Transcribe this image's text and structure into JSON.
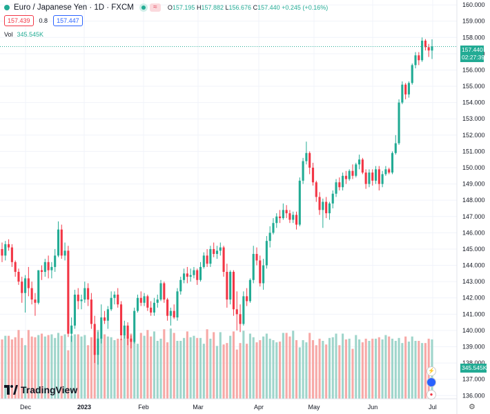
{
  "header": {
    "title": "Euro / Japanese Yen · 1D · FXCM",
    "approx_label": "≈",
    "open_label": "O",
    "open": "157.195",
    "high_label": "H",
    "high": "157.882",
    "low_label": "L",
    "low": "156.676",
    "close_label": "C",
    "close": "157.440",
    "change": "+0.245 (+0.16%)"
  },
  "trade": {
    "sell": "157.439",
    "spread": "0.8",
    "buy": "157.447"
  },
  "volume": {
    "label": "Vol",
    "value": "345.545K"
  },
  "last_price_tag": {
    "price": "157.440",
    "countdown": "02:27:39"
  },
  "volume_tag": "345.545K",
  "logo": "TradingView",
  "colors": {
    "up": "#22ab94",
    "down": "#f23645",
    "vol_up": "#9fd5cb",
    "vol_down": "#f7a9a7"
  },
  "chart_data": {
    "type": "candlestick",
    "symbol": "Euro / Japanese Yen",
    "interval": "1D",
    "x_ticks": [
      "Dec",
      "2023",
      "Feb",
      "Mar",
      "Apr",
      "May",
      "Jun",
      "Jul"
    ],
    "y_ticks": [
      136,
      137,
      138,
      139,
      140,
      141,
      142,
      143,
      144,
      145,
      146,
      147,
      148,
      149,
      150,
      151,
      152,
      153,
      154,
      155,
      156,
      157,
      158,
      159,
      160
    ],
    "y_tick_labels": [
      "136.000",
      "137.000",
      "138.000",
      "139.000",
      "140.000",
      "141.000",
      "142.000",
      "143.000",
      "144.000",
      "145.000",
      "146.000",
      "147.000",
      "148.000",
      "149.000",
      "150.000",
      "151.000",
      "152.000",
      "153.000",
      "154.000",
      "155.000",
      "156.000",
      "157.000",
      "158.000",
      "159.000",
      "160.000"
    ],
    "ylim": [
      135.8,
      160.3
    ],
    "last_close": 157.44,
    "candles": [
      [
        145.0,
        145.4,
        144.2,
        144.6
      ],
      [
        144.6,
        145.5,
        144.3,
        145.3
      ],
      [
        145.3,
        145.6,
        144.9,
        145.1
      ],
      [
        145.1,
        145.3,
        143.9,
        144.2
      ],
      [
        144.2,
        144.3,
        143.3,
        143.6
      ],
      [
        143.6,
        143.8,
        142.8,
        143.0
      ],
      [
        143.0,
        143.3,
        141.7,
        142.3
      ],
      [
        142.3,
        143.4,
        141.1,
        143.2
      ],
      [
        143.2,
        143.9,
        142.1,
        142.6
      ],
      [
        142.6,
        143.0,
        141.6,
        141.9
      ],
      [
        141.9,
        142.3,
        140.9,
        141.7
      ],
      [
        141.7,
        143.7,
        141.6,
        143.7
      ],
      [
        143.7,
        144.0,
        143.1,
        143.6
      ],
      [
        143.6,
        144.4,
        143.3,
        144.2
      ],
      [
        144.2,
        144.6,
        143.2,
        143.7
      ],
      [
        143.7,
        144.2,
        143.2,
        143.9
      ],
      [
        143.9,
        145.0,
        143.6,
        144.6
      ],
      [
        144.6,
        146.7,
        144.5,
        146.2
      ],
      [
        146.2,
        146.5,
        144.4,
        144.6
      ],
      [
        144.6,
        145.4,
        144.3,
        144.9
      ],
      [
        144.9,
        145.2,
        139.6,
        139.8
      ],
      [
        139.8,
        140.8,
        139.3,
        140.3
      ],
      [
        140.3,
        142.5,
        140.1,
        142.2
      ],
      [
        142.2,
        142.6,
        141.3,
        141.8
      ],
      [
        141.8,
        142.2,
        141.3,
        141.9
      ],
      [
        141.9,
        143.0,
        141.7,
        142.6
      ],
      [
        142.6,
        142.9,
        141.5,
        141.9
      ],
      [
        141.9,
        142.3,
        140.1,
        140.4
      ],
      [
        140.4,
        140.9,
        138.0,
        138.5
      ],
      [
        138.5,
        139.9,
        137.9,
        139.5
      ],
      [
        139.5,
        141.6,
        139.2,
        140.8
      ],
      [
        140.8,
        141.2,
        140.4,
        140.6
      ],
      [
        140.6,
        141.5,
        140.1,
        141.3
      ],
      [
        141.3,
        142.4,
        141.2,
        142.0
      ],
      [
        142.0,
        142.4,
        141.6,
        142.2
      ],
      [
        142.2,
        142.6,
        141.4,
        141.6
      ],
      [
        141.6,
        141.8,
        139.4,
        139.7
      ],
      [
        139.7,
        140.6,
        139.5,
        140.3
      ],
      [
        140.3,
        140.5,
        139.1,
        139.5
      ],
      [
        139.5,
        139.7,
        138.9,
        139.3
      ],
      [
        139.3,
        141.4,
        139.2,
        141.2
      ],
      [
        141.2,
        142.2,
        141.1,
        142.0
      ],
      [
        142.0,
        142.4,
        141.5,
        141.7
      ],
      [
        141.7,
        142.3,
        141.5,
        142.1
      ],
      [
        142.1,
        142.2,
        141.2,
        141.4
      ],
      [
        141.4,
        141.8,
        140.9,
        141.1
      ],
      [
        141.1,
        142.0,
        140.9,
        141.7
      ],
      [
        141.7,
        142.2,
        141.4,
        141.9
      ],
      [
        141.9,
        143.1,
        141.8,
        142.9
      ],
      [
        142.9,
        143.0,
        141.7,
        141.9
      ],
      [
        141.9,
        142.0,
        140.6,
        140.9
      ],
      [
        140.9,
        141.4,
        140.3,
        141.2
      ],
      [
        141.2,
        141.6,
        140.7,
        140.8
      ],
      [
        140.8,
        142.6,
        140.6,
        142.4
      ],
      [
        142.4,
        143.3,
        142.2,
        143.1
      ],
      [
        143.1,
        143.8,
        142.9,
        143.5
      ],
      [
        143.5,
        143.9,
        142.9,
        143.3
      ],
      [
        143.3,
        143.8,
        143.0,
        143.4
      ],
      [
        143.4,
        143.9,
        143.2,
        143.7
      ],
      [
        143.7,
        143.8,
        142.8,
        143.1
      ],
      [
        143.1,
        144.2,
        143.0,
        143.9
      ],
      [
        143.9,
        144.8,
        143.8,
        144.6
      ],
      [
        144.6,
        145.0,
        143.9,
        144.1
      ],
      [
        144.1,
        145.2,
        143.9,
        145.0
      ],
      [
        145.0,
        145.4,
        144.5,
        144.7
      ],
      [
        144.7,
        145.2,
        144.4,
        144.9
      ],
      [
        144.9,
        145.4,
        144.6,
        145.1
      ],
      [
        145.1,
        145.2,
        143.3,
        143.6
      ],
      [
        143.6,
        144.1,
        141.4,
        141.9
      ],
      [
        141.9,
        143.7,
        141.6,
        143.6
      ],
      [
        143.6,
        143.7,
        140.9,
        141.3
      ],
      [
        141.3,
        142.4,
        140.0,
        141.0
      ],
      [
        141.0,
        141.6,
        139.9,
        140.4
      ],
      [
        140.4,
        142.4,
        140.3,
        142.1
      ],
      [
        142.1,
        142.6,
        141.5,
        141.8
      ],
      [
        141.8,
        143.2,
        141.7,
        143.1
      ],
      [
        143.1,
        145.2,
        142.9,
        144.7
      ],
      [
        144.7,
        145.1,
        144.0,
        144.3
      ],
      [
        144.3,
        144.6,
        142.7,
        142.9
      ],
      [
        142.9,
        144.4,
        142.5,
        144.0
      ],
      [
        144.0,
        145.8,
        143.8,
        145.5
      ],
      [
        145.5,
        146.4,
        145.1,
        146.0
      ],
      [
        146.0,
        146.9,
        145.9,
        146.6
      ],
      [
        146.6,
        147.2,
        146.3,
        147.0
      ],
      [
        147.0,
        147.4,
        146.6,
        146.9
      ],
      [
        146.9,
        147.8,
        146.8,
        147.4
      ],
      [
        147.4,
        147.7,
        146.9,
        147.2
      ],
      [
        147.2,
        147.4,
        146.6,
        146.8
      ],
      [
        146.8,
        147.3,
        146.6,
        147.1
      ],
      [
        147.1,
        147.3,
        146.2,
        146.5
      ],
      [
        146.5,
        149.4,
        146.4,
        149.2
      ],
      [
        149.2,
        150.6,
        149.0,
        150.4
      ],
      [
        150.4,
        151.6,
        150.2,
        150.9
      ],
      [
        150.9,
        151.0,
        149.6,
        150.0
      ],
      [
        150.0,
        150.3,
        148.9,
        149.1
      ],
      [
        149.1,
        149.2,
        147.9,
        148.2
      ],
      [
        148.2,
        148.5,
        147.1,
        147.4
      ],
      [
        147.4,
        148.1,
        146.3,
        147.9
      ],
      [
        147.9,
        148.2,
        146.9,
        147.2
      ],
      [
        147.2,
        147.9,
        146.8,
        147.8
      ],
      [
        147.8,
        148.6,
        147.5,
        148.4
      ],
      [
        148.4,
        149.3,
        148.2,
        149.1
      ],
      [
        149.1,
        149.4,
        148.6,
        148.8
      ],
      [
        148.8,
        149.7,
        148.6,
        149.5
      ],
      [
        149.5,
        149.8,
        149.0,
        149.3
      ],
      [
        149.3,
        149.9,
        149.2,
        149.8
      ],
      [
        149.8,
        150.2,
        149.3,
        149.5
      ],
      [
        149.5,
        150.3,
        149.4,
        150.2
      ],
      [
        150.2,
        150.8,
        149.9,
        150.5
      ],
      [
        150.5,
        150.6,
        149.6,
        149.7
      ],
      [
        149.7,
        149.9,
        148.7,
        149.0
      ],
      [
        149.0,
        149.9,
        148.8,
        149.7
      ],
      [
        149.7,
        149.9,
        148.9,
        149.2
      ],
      [
        149.2,
        150.1,
        149.0,
        149.9
      ],
      [
        149.9,
        150.1,
        148.6,
        149.0
      ],
      [
        149.0,
        149.8,
        148.8,
        149.6
      ],
      [
        149.6,
        150.1,
        149.5,
        149.9
      ],
      [
        149.9,
        150.0,
        149.6,
        149.7
      ],
      [
        149.7,
        151.0,
        149.6,
        150.9
      ],
      [
        150.9,
        152.0,
        150.8,
        151.5
      ],
      [
        151.5,
        154.2,
        151.4,
        154.0
      ],
      [
        154.0,
        155.3,
        153.9,
        155.1
      ],
      [
        155.1,
        155.2,
        154.2,
        154.5
      ],
      [
        154.5,
        155.3,
        154.3,
        155.2
      ],
      [
        155.2,
        156.4,
        155.1,
        156.3
      ],
      [
        156.3,
        157.1,
        156.1,
        156.9
      ],
      [
        156.9,
        157.1,
        156.3,
        156.6
      ],
      [
        156.6,
        158.0,
        156.5,
        157.8
      ],
      [
        157.8,
        157.9,
        157.2,
        157.4
      ],
      [
        157.4,
        157.6,
        156.8,
        157.2
      ],
      [
        157.195,
        157.882,
        156.676,
        157.44
      ]
    ],
    "volumes": [
      82,
      87,
      87,
      82,
      85,
      95,
      84,
      74,
      95,
      86,
      85,
      88,
      90,
      86,
      88,
      89,
      84,
      91,
      87,
      89,
      67,
      87,
      89,
      89,
      86,
      88,
      74,
      85,
      82,
      95,
      84,
      89,
      86,
      85,
      81,
      83,
      83,
      88,
      86,
      90,
      79,
      76,
      91,
      87,
      95,
      86,
      93,
      80,
      83,
      96,
      78,
      97,
      91,
      80,
      80,
      84,
      93,
      85,
      87,
      84,
      84,
      76,
      96,
      83,
      92,
      73,
      92,
      75,
      77,
      87,
      93,
      68,
      77,
      94,
      76,
      90,
      85,
      78,
      81,
      86,
      90,
      83,
      81,
      78,
      79,
      91,
      91,
      86,
      94,
      81,
      71,
      81,
      78,
      91,
      81,
      74,
      83,
      80,
      75,
      84,
      85,
      90,
      74,
      90,
      82,
      83,
      69,
      88,
      82,
      78,
      83,
      80,
      83,
      83,
      85,
      82,
      88,
      86,
      83,
      80,
      84,
      77,
      86,
      79,
      86,
      80,
      80,
      77,
      77,
      83,
      82,
      79
    ]
  }
}
